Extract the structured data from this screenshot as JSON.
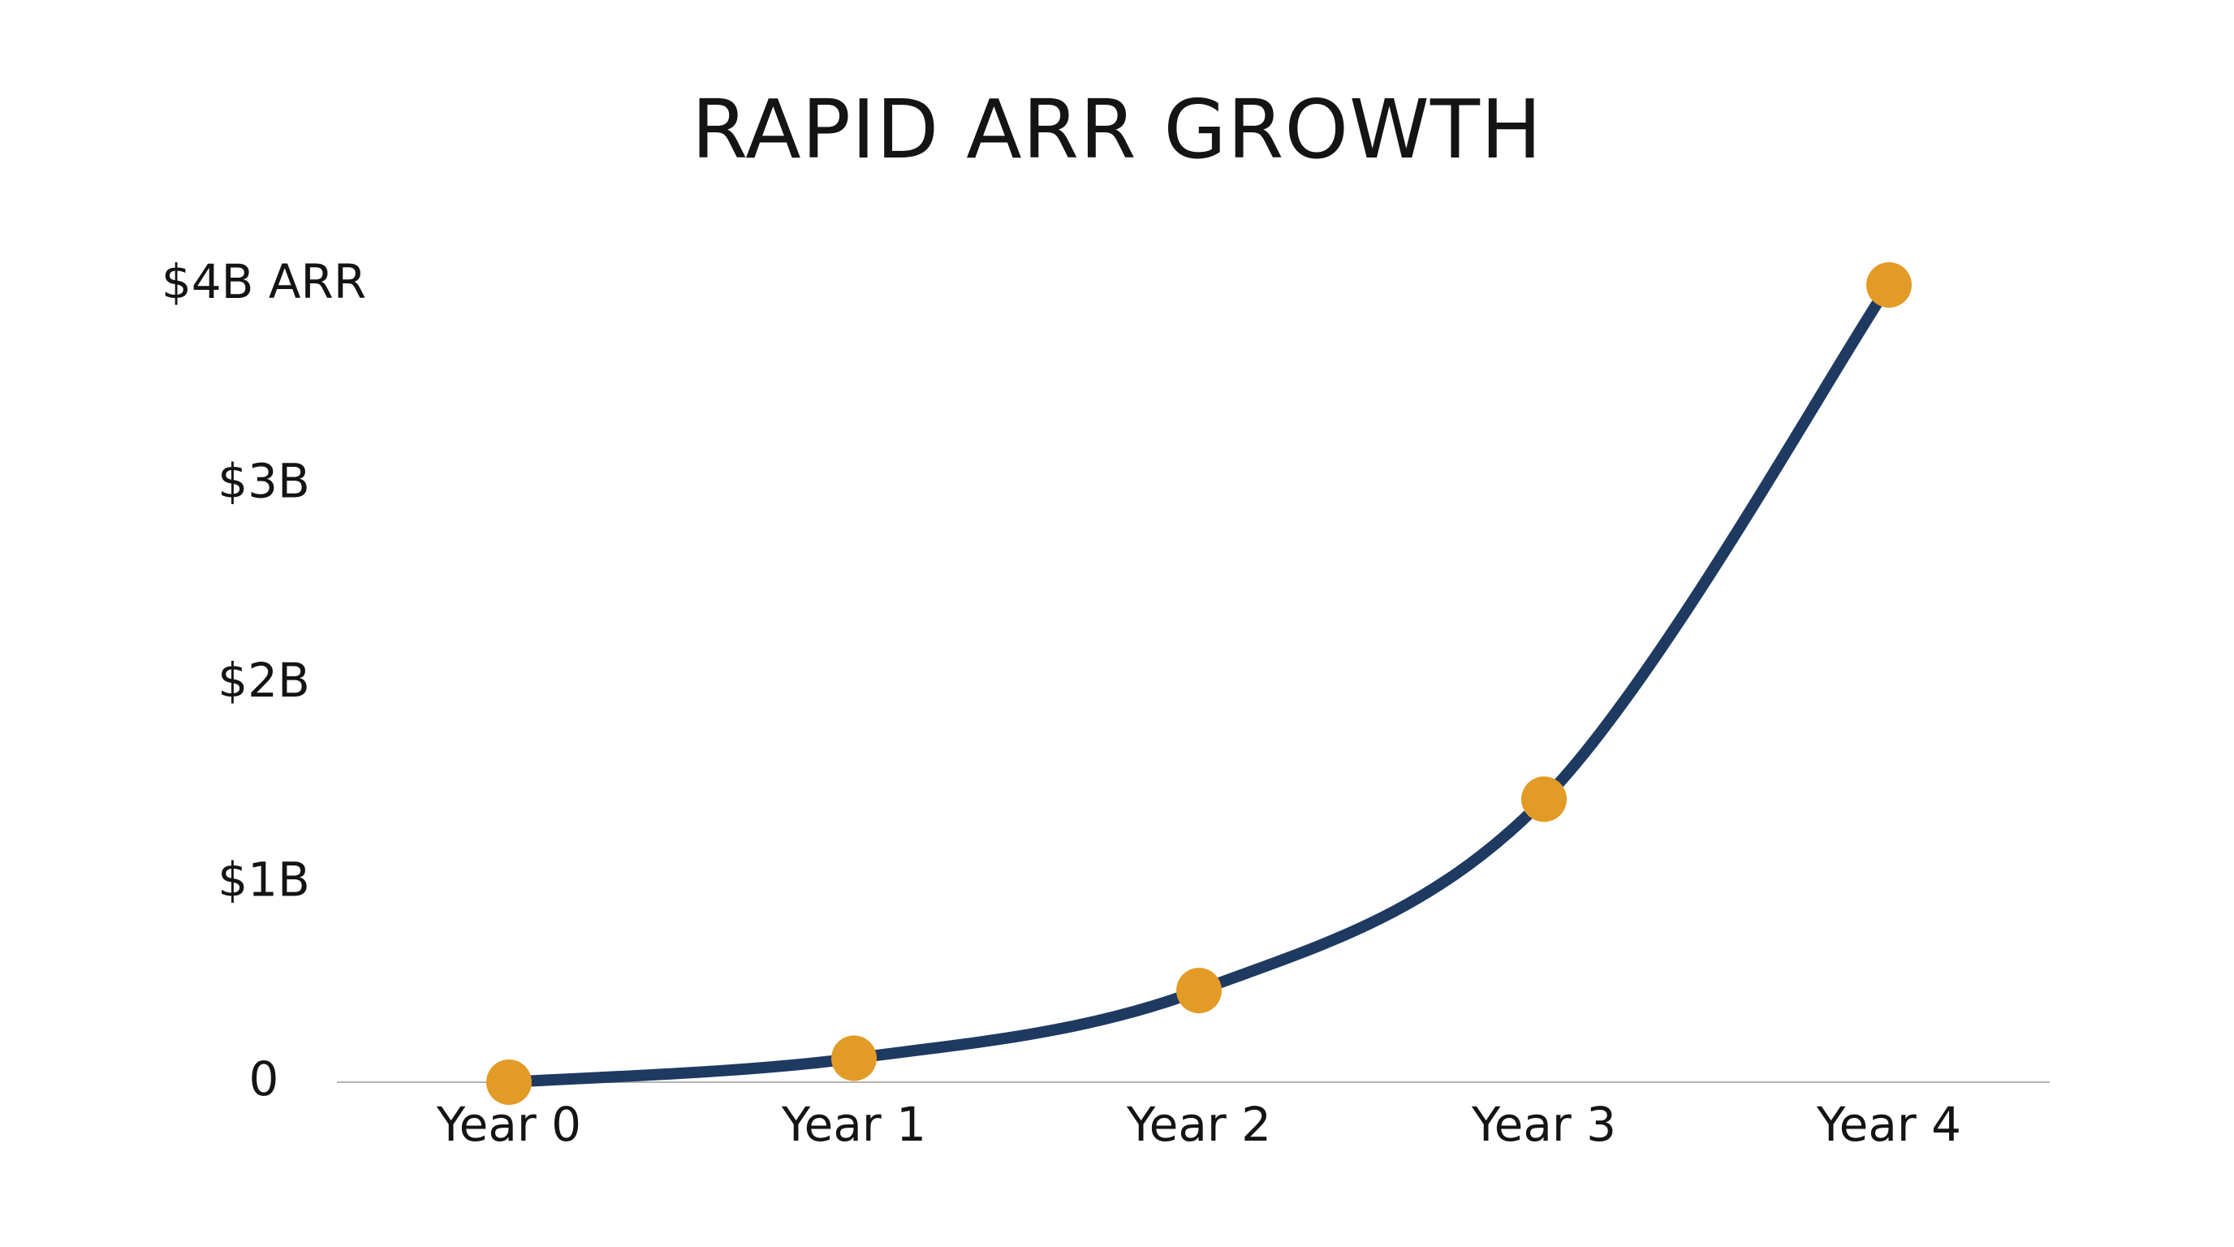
{
  "chart_data": {
    "type": "line",
    "title": "RAPID ARR GROWTH",
    "categories": [
      "Year 0",
      "Year 1",
      "Year 2",
      "Year 3",
      "Year 4"
    ],
    "series": [
      {
        "values": [
          0,
          0.12,
          0.46,
          1.42,
          4.0
        ]
      }
    ],
    "y_ticks": [
      {
        "value": 0,
        "label": "0"
      },
      {
        "value": 1,
        "label": "$1B"
      },
      {
        "value": 2,
        "label": "$2B"
      },
      {
        "value": 3,
        "label": "$3B"
      },
      {
        "value": 4,
        "label": "$4B ARR"
      }
    ],
    "ylim": [
      0,
      4
    ],
    "grid": false,
    "legend": "none",
    "line_color": "#1e3a61",
    "marker_color": "#e39b27",
    "axis_color": "#b4b4b4"
  }
}
